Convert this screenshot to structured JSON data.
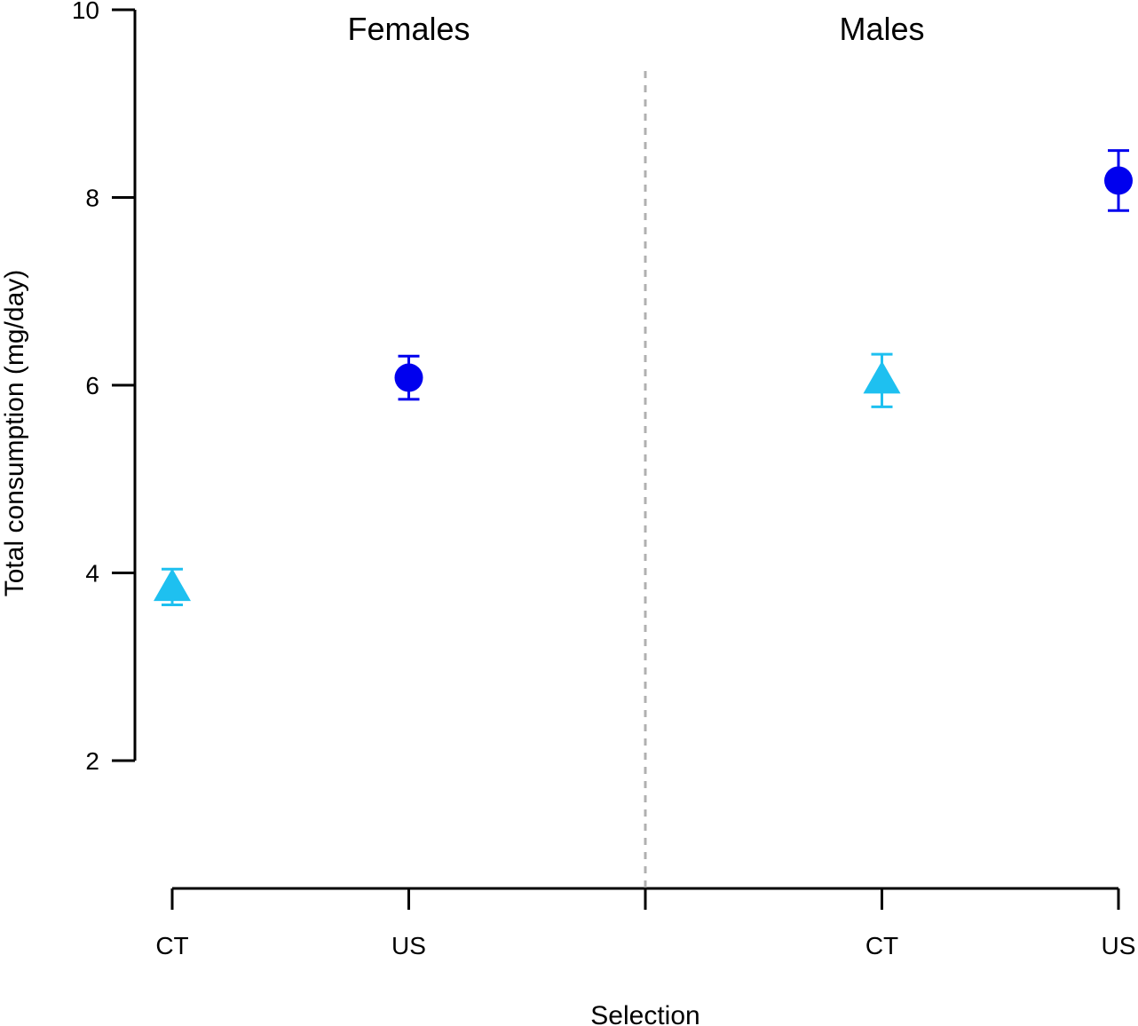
{
  "chart_data": {
    "type": "scatter",
    "title": "",
    "xlabel": "Selection",
    "ylabel": "Total consumption (mg/day)",
    "ylim": [
      0.7,
      10
    ],
    "yticks": [
      2,
      4,
      6,
      8,
      10
    ],
    "x_positions": [
      1,
      2,
      3,
      4,
      5
    ],
    "xlim": [
      1,
      5
    ],
    "x_tick_labels": [
      "CT",
      "US",
      "",
      "CT",
      "US"
    ],
    "divider_x": 3,
    "panels": [
      "Females",
      "Males"
    ],
    "colors": {
      "CT": "#1ec0f0",
      "US": "#0000ee",
      "divider": "#b0b0b0"
    },
    "points": [
      {
        "panel": "Females",
        "group": "CT",
        "x": 1,
        "mean": 3.85,
        "lower": 3.66,
        "upper": 4.04,
        "marker": "triangle"
      },
      {
        "panel": "Females",
        "group": "US",
        "x": 2,
        "mean": 6.08,
        "lower": 5.85,
        "upper": 6.31,
        "marker": "circle"
      },
      {
        "panel": "Males",
        "group": "CT",
        "x": 4,
        "mean": 6.06,
        "lower": 5.77,
        "upper": 6.33,
        "marker": "triangle"
      },
      {
        "panel": "Males",
        "group": "US",
        "x": 5,
        "mean": 8.18,
        "lower": 7.86,
        "upper": 8.5,
        "marker": "circle"
      }
    ]
  }
}
